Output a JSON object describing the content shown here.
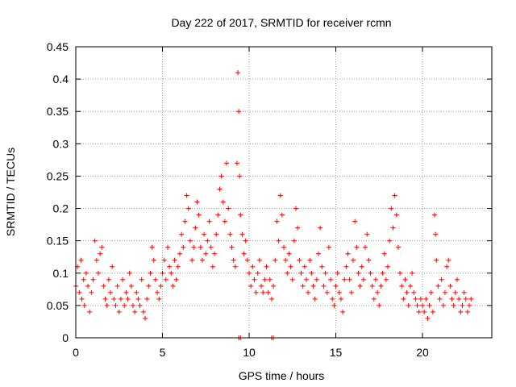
{
  "chart_data": {
    "type": "scatter",
    "title": "Day 222 of 2017, SRMTID for receiver rcmn",
    "xlabel": "GPS time / hours",
    "ylabel": "SRMTID / TECUs",
    "xlim": [
      0,
      24
    ],
    "ylim": [
      0,
      0.45
    ],
    "xticks": [
      0,
      5,
      10,
      15,
      20
    ],
    "xtick_labels": [
      "0",
      "5",
      "10",
      "15",
      "20"
    ],
    "yticks": [
      0,
      0.05,
      0.1,
      0.15,
      0.2,
      0.25,
      0.3,
      0.35,
      0.4,
      0.45
    ],
    "ytick_labels": [
      "0",
      "0.05",
      "0.1",
      "0.15",
      "0.2",
      "0.25",
      "0.3",
      "0.35",
      "0.4",
      "0.45"
    ],
    "grid": true,
    "marker": "plus",
    "color": "#ff0000",
    "series": [
      {
        "name": "SRMTID",
        "points": [
          [
            0.0,
            0.08
          ],
          [
            0.1,
            0.11
          ],
          [
            0.2,
            0.07
          ],
          [
            0.3,
            0.12
          ],
          [
            0.35,
            0.06
          ],
          [
            0.45,
            0.09
          ],
          [
            0.5,
            0.05
          ],
          [
            0.6,
            0.1
          ],
          [
            0.7,
            0.08
          ],
          [
            0.8,
            0.04
          ],
          [
            0.9,
            0.07
          ],
          [
            1.0,
            0.09
          ],
          [
            1.1,
            0.15
          ],
          [
            1.2,
            0.12
          ],
          [
            1.3,
            0.1
          ],
          [
            1.4,
            0.13
          ],
          [
            1.5,
            0.14
          ],
          [
            1.6,
            0.08
          ],
          [
            1.7,
            0.06
          ],
          [
            1.8,
            0.05
          ],
          [
            1.9,
            0.09
          ],
          [
            2.0,
            0.07
          ],
          [
            2.1,
            0.11
          ],
          [
            2.2,
            0.06
          ],
          [
            2.3,
            0.05
          ],
          [
            2.4,
            0.08
          ],
          [
            2.5,
            0.04
          ],
          [
            2.6,
            0.06
          ],
          [
            2.7,
            0.09
          ],
          [
            2.8,
            0.05
          ],
          [
            2.9,
            0.07
          ],
          [
            3.0,
            0.06
          ],
          [
            3.1,
            0.1
          ],
          [
            3.2,
            0.08
          ],
          [
            3.3,
            0.05
          ],
          [
            3.4,
            0.04
          ],
          [
            3.5,
            0.07
          ],
          [
            3.6,
            0.06
          ],
          [
            3.7,
            0.05
          ],
          [
            3.8,
            0.09
          ],
          [
            3.9,
            0.04
          ],
          [
            4.0,
            0.03
          ],
          [
            4.1,
            0.06
          ],
          [
            4.2,
            0.08
          ],
          [
            4.3,
            0.1
          ],
          [
            4.4,
            0.14
          ],
          [
            4.5,
            0.12
          ],
          [
            4.6,
            0.09
          ],
          [
            4.7,
            0.07
          ],
          [
            4.8,
            0.06
          ],
          [
            4.9,
            0.08
          ],
          [
            5.0,
            0.1
          ],
          [
            5.1,
            0.12
          ],
          [
            5.2,
            0.09
          ],
          [
            5.3,
            0.14
          ],
          [
            5.4,
            0.11
          ],
          [
            5.5,
            0.1
          ],
          [
            5.6,
            0.08
          ],
          [
            5.7,
            0.12
          ],
          [
            5.8,
            0.09
          ],
          [
            5.9,
            0.11
          ],
          [
            6.0,
            0.13
          ],
          [
            6.1,
            0.16
          ],
          [
            6.2,
            0.14
          ],
          [
            6.3,
            0.18
          ],
          [
            6.4,
            0.22
          ],
          [
            6.5,
            0.2
          ],
          [
            6.6,
            0.15
          ],
          [
            6.7,
            0.12
          ],
          [
            6.8,
            0.14
          ],
          [
            6.9,
            0.17
          ],
          [
            7.0,
            0.21
          ],
          [
            7.1,
            0.19
          ],
          [
            7.2,
            0.14
          ],
          [
            7.3,
            0.12
          ],
          [
            7.4,
            0.16
          ],
          [
            7.5,
            0.13
          ],
          [
            7.6,
            0.15
          ],
          [
            7.7,
            0.18
          ],
          [
            7.8,
            0.14
          ],
          [
            7.9,
            0.11
          ],
          [
            8.0,
            0.13
          ],
          [
            8.1,
            0.16
          ],
          [
            8.2,
            0.19
          ],
          [
            8.3,
            0.23
          ],
          [
            8.4,
            0.25
          ],
          [
            8.5,
            0.21
          ],
          [
            8.6,
            0.18
          ],
          [
            8.7,
            0.27
          ],
          [
            8.8,
            0.2
          ],
          [
            8.9,
            0.16
          ],
          [
            9.0,
            0.14
          ],
          [
            9.1,
            0.12
          ],
          [
            9.2,
            0.11
          ],
          [
            9.3,
            0.27
          ],
          [
            9.35,
            0.41
          ],
          [
            9.4,
            0.35
          ],
          [
            9.45,
            0.25
          ],
          [
            9.5,
            0.19
          ],
          [
            9.6,
            0.16
          ],
          [
            9.7,
            0.13
          ],
          [
            9.8,
            0.15
          ],
          [
            9.9,
            0.12
          ],
          [
            10.0,
            0.1
          ],
          [
            10.1,
            0.08
          ],
          [
            10.2,
            0.11
          ],
          [
            10.3,
            0.09
          ],
          [
            10.4,
            0.07
          ],
          [
            10.5,
            0.1
          ],
          [
            10.6,
            0.12
          ],
          [
            10.7,
            0.08
          ],
          [
            10.8,
            0.07
          ],
          [
            10.9,
            0.09
          ],
          [
            11.0,
            0.11
          ],
          [
            11.1,
            0.07
          ],
          [
            11.2,
            0.09
          ],
          [
            11.3,
            0.06
          ],
          [
            11.4,
            0.08
          ],
          [
            11.5,
            0.12
          ],
          [
            11.6,
            0.18
          ],
          [
            11.7,
            0.15
          ],
          [
            11.8,
            0.22
          ],
          [
            11.9,
            0.19
          ],
          [
            12.0,
            0.14
          ],
          [
            12.1,
            0.12
          ],
          [
            12.2,
            0.1
          ],
          [
            12.3,
            0.13
          ],
          [
            12.4,
            0.11
          ],
          [
            12.5,
            0.09
          ],
          [
            12.6,
            0.15
          ],
          [
            12.7,
            0.2
          ],
          [
            12.8,
            0.17
          ],
          [
            12.9,
            0.12
          ],
          [
            13.0,
            0.1
          ],
          [
            13.1,
            0.08
          ],
          [
            13.2,
            0.11
          ],
          [
            13.3,
            0.09
          ],
          [
            13.4,
            0.07
          ],
          [
            13.5,
            0.12
          ],
          [
            13.6,
            0.1
          ],
          [
            13.7,
            0.08
          ],
          [
            13.8,
            0.06
          ],
          [
            13.9,
            0.09
          ],
          [
            14.0,
            0.13
          ],
          [
            14.1,
            0.17
          ],
          [
            14.2,
            0.11
          ],
          [
            14.3,
            0.08
          ],
          [
            14.4,
            0.1
          ],
          [
            14.5,
            0.07
          ],
          [
            14.6,
            0.14
          ],
          [
            14.7,
            0.09
          ],
          [
            14.8,
            0.06
          ],
          [
            14.9,
            0.05
          ],
          [
            15.0,
            0.08
          ],
          [
            15.1,
            0.1
          ],
          [
            15.2,
            0.07
          ],
          [
            15.3,
            0.06
          ],
          [
            15.4,
            0.04
          ],
          [
            15.5,
            0.09
          ],
          [
            15.6,
            0.11
          ],
          [
            15.7,
            0.13
          ],
          [
            15.8,
            0.09
          ],
          [
            15.9,
            0.07
          ],
          [
            16.0,
            0.12
          ],
          [
            16.1,
            0.18
          ],
          [
            16.2,
            0.14
          ],
          [
            16.3,
            0.1
          ],
          [
            16.4,
            0.08
          ],
          [
            16.5,
            0.11
          ],
          [
            16.6,
            0.09
          ],
          [
            16.7,
            0.14
          ],
          [
            16.8,
            0.16
          ],
          [
            16.9,
            0.12
          ],
          [
            17.0,
            0.1
          ],
          [
            17.1,
            0.08
          ],
          [
            17.2,
            0.06
          ],
          [
            17.3,
            0.09
          ],
          [
            17.4,
            0.07
          ],
          [
            17.5,
            0.05
          ],
          [
            17.6,
            0.08
          ],
          [
            17.7,
            0.1
          ],
          [
            17.8,
            0.13
          ],
          [
            17.9,
            0.09
          ],
          [
            18.0,
            0.11
          ],
          [
            18.1,
            0.15
          ],
          [
            18.2,
            0.2
          ],
          [
            18.3,
            0.17
          ],
          [
            18.4,
            0.22
          ],
          [
            18.5,
            0.19
          ],
          [
            18.6,
            0.14
          ],
          [
            18.7,
            0.1
          ],
          [
            18.8,
            0.08
          ],
          [
            18.9,
            0.06
          ],
          [
            19.0,
            0.09
          ],
          [
            19.1,
            0.07
          ],
          [
            19.2,
            0.05
          ],
          [
            19.3,
            0.08
          ],
          [
            19.4,
            0.1
          ],
          [
            19.5,
            0.07
          ],
          [
            19.6,
            0.06
          ],
          [
            19.7,
            0.05
          ],
          [
            19.8,
            0.04
          ],
          [
            19.9,
            0.06
          ],
          [
            20.0,
            0.05
          ],
          [
            20.1,
            0.04
          ],
          [
            20.2,
            0.06
          ],
          [
            20.3,
            0.03
          ],
          [
            20.4,
            0.05
          ],
          [
            20.5,
            0.07
          ],
          [
            20.6,
            0.04
          ],
          [
            20.7,
            0.19
          ],
          [
            20.75,
            0.16
          ],
          [
            20.8,
            0.12
          ],
          [
            20.9,
            0.08
          ],
          [
            21.0,
            0.06
          ],
          [
            21.1,
            0.09
          ],
          [
            21.2,
            0.05
          ],
          [
            21.3,
            0.07
          ],
          [
            21.4,
            0.11
          ],
          [
            21.5,
            0.12
          ],
          [
            21.6,
            0.08
          ],
          [
            21.7,
            0.06
          ],
          [
            21.8,
            0.05
          ],
          [
            21.9,
            0.07
          ],
          [
            22.0,
            0.09
          ],
          [
            22.1,
            0.06
          ],
          [
            22.2,
            0.04
          ],
          [
            22.3,
            0.05
          ],
          [
            22.4,
            0.07
          ],
          [
            22.5,
            0.06
          ],
          [
            22.6,
            0.04
          ],
          [
            22.7,
            0.05
          ],
          [
            22.8,
            0.06
          ],
          [
            9.4,
            0.0
          ],
          [
            9.5,
            0.0
          ],
          [
            11.3,
            0.0
          ],
          [
            11.4,
            0.0
          ]
        ]
      }
    ]
  }
}
